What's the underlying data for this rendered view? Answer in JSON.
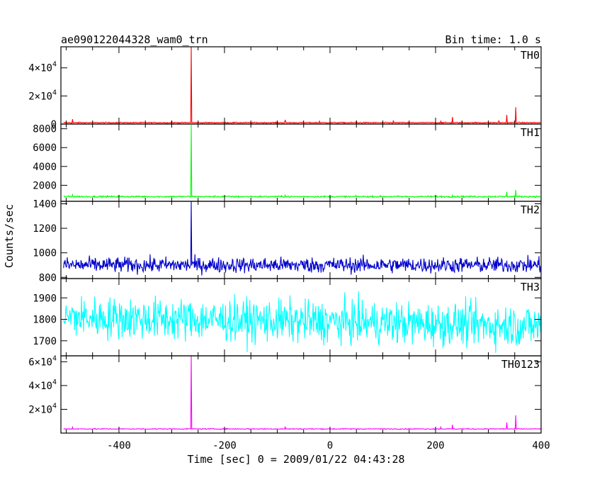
{
  "chart_data": {
    "type": "line",
    "title": "ae090122044328_wam0_trn",
    "subtitle": "Bin time: 1.0 s",
    "xlabel": "Time [sec] 0 = 2009/01/22 04:43:28",
    "ylabel": "Counts/sec",
    "xlim": [
      -510,
      400
    ],
    "xticks": [
      "-400",
      "-200",
      "0",
      "200",
      "400"
    ],
    "xtick_values": [
      -400,
      -200,
      0,
      200,
      400
    ],
    "panels": [
      {
        "name": "TH0",
        "color": "#ff0000",
        "ylim": [
          0,
          55000
        ],
        "yticks": [
          {
            "value": 0,
            "mant": "0",
            "exp": ""
          },
          {
            "value": 20000,
            "mant": "2×10",
            "exp": "4"
          },
          {
            "value": 40000,
            "mant": "4×10",
            "exp": "4"
          }
        ],
        "baseline": 1000,
        "noise": 250,
        "skew": 0,
        "spikes": [
          [
            -488,
            3500
          ],
          [
            -300,
            2000
          ],
          [
            -263,
            55000
          ],
          [
            -85,
            3000
          ],
          [
            -20,
            2000
          ],
          [
            50,
            2000
          ],
          [
            120,
            2500
          ],
          [
            210,
            2000
          ],
          [
            232,
            5000
          ],
          [
            320,
            2500
          ],
          [
            335,
            6500
          ],
          [
            352,
            12000
          ]
        ]
      },
      {
        "name": "TH1",
        "color": "#00ff00",
        "ylim": [
          300,
          8500
        ],
        "yticks": [
          {
            "value": 2000,
            "mant": "2000",
            "exp": ""
          },
          {
            "value": 4000,
            "mant": "4000",
            "exp": ""
          },
          {
            "value": 6000,
            "mant": "6000",
            "exp": ""
          },
          {
            "value": 8000,
            "mant": "8000",
            "exp": ""
          }
        ],
        "baseline": 800,
        "noise": 60,
        "skew": 0,
        "spikes": [
          [
            -488,
            1000
          ],
          [
            -263,
            8400
          ],
          [
            -85,
            950
          ],
          [
            232,
            950
          ],
          [
            335,
            1300
          ],
          [
            352,
            1500
          ]
        ]
      },
      {
        "name": "TH2",
        "color": "#0000cc",
        "ylim": [
          790,
          1420
        ],
        "yticks": [
          {
            "value": 800,
            "mant": "800",
            "exp": ""
          },
          {
            "value": 1000,
            "mant": "1000",
            "exp": ""
          },
          {
            "value": 1200,
            "mant": "1200",
            "exp": ""
          },
          {
            "value": 1400,
            "mant": "1400",
            "exp": ""
          }
        ],
        "baseline": 900,
        "noise": 45,
        "skew": 0,
        "spikes": [
          [
            -263,
            1420
          ]
        ]
      },
      {
        "name": "TH3",
        "color": "#00ffff",
        "ylim": [
          1630,
          1990
        ],
        "yticks": [
          {
            "value": 1700,
            "mant": "1700",
            "exp": ""
          },
          {
            "value": 1800,
            "mant": "1800",
            "exp": ""
          },
          {
            "value": 1900,
            "mant": "1900",
            "exp": ""
          }
        ],
        "baseline": 1810,
        "noise": 70,
        "skew": -40,
        "spikes": []
      },
      {
        "name": "TH0123",
        "color": "#ff00ff",
        "ylim": [
          0,
          65000
        ],
        "yticks": [
          {
            "value": 20000,
            "mant": "2×10",
            "exp": "4"
          },
          {
            "value": 40000,
            "mant": "4×10",
            "exp": "4"
          },
          {
            "value": 60000,
            "mant": "6×10",
            "exp": "4"
          }
        ],
        "baseline": 3500,
        "noise": 280,
        "skew": 0,
        "spikes": [
          [
            -488,
            5000
          ],
          [
            -263,
            65000
          ],
          [
            -85,
            5500
          ],
          [
            210,
            5000
          ],
          [
            232,
            7000
          ],
          [
            335,
            9000
          ],
          [
            352,
            15000
          ]
        ]
      }
    ]
  }
}
